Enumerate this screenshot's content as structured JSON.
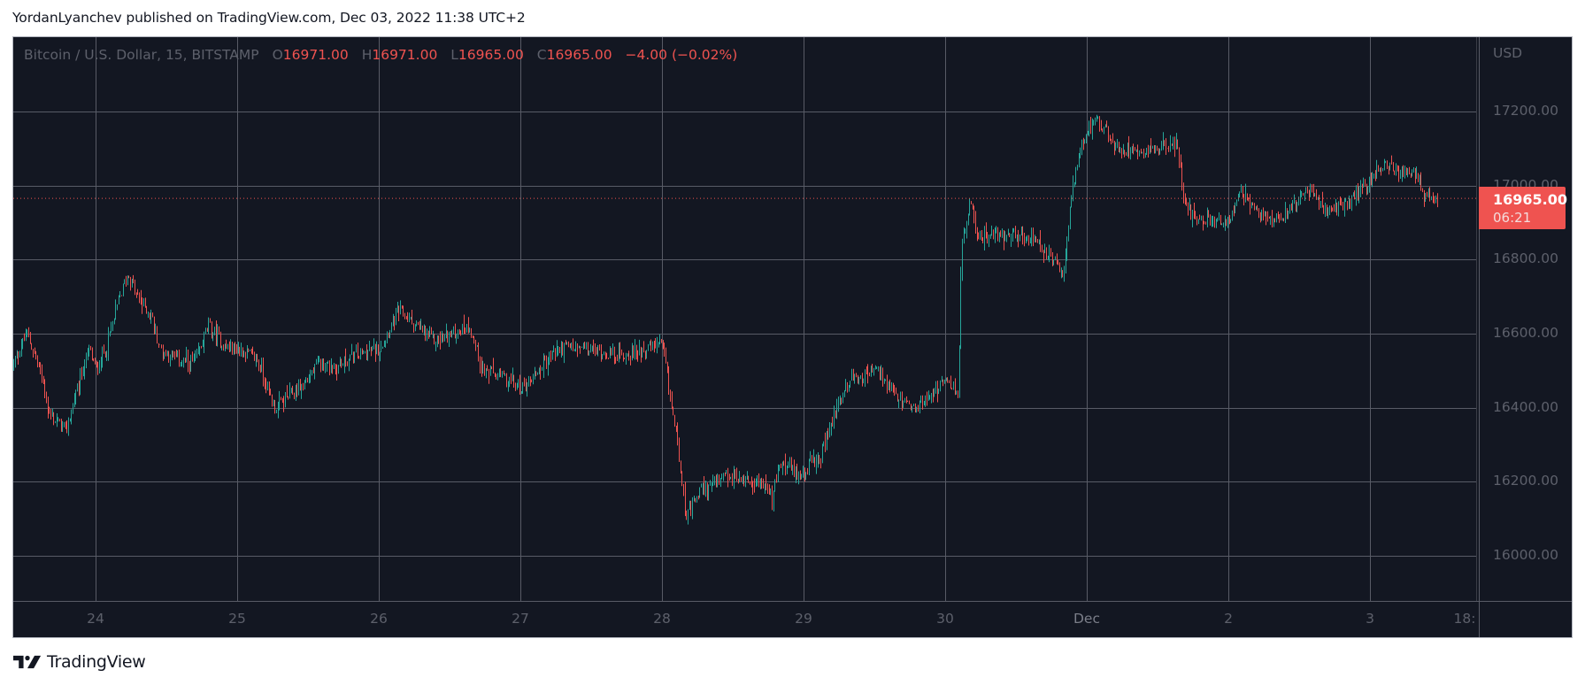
{
  "header": {
    "caption": "YordanLyanchev published on TradingView.com, Dec 03, 2022 11:38 UTC+2"
  },
  "legend": {
    "symbol": "Bitcoin / U.S. Dollar, 15, BITSTAMP",
    "open_label": "O",
    "open": "16971.00",
    "high_label": "H",
    "high": "16971.00",
    "low_label": "L",
    "low": "16965.00",
    "close_label": "C",
    "close": "16965.00",
    "change": "−4.00 (−0.02%)"
  },
  "price_axis": {
    "currency": "USD",
    "ticks": [
      "17200.00",
      "17000.00",
      "16800.00",
      "16600.00",
      "16400.00",
      "16200.00",
      "16000.00"
    ],
    "last_price": "16965.00",
    "countdown": "06:21"
  },
  "time_axis": {
    "ticks": [
      "24",
      "25",
      "26",
      "27",
      "28",
      "29",
      "30",
      "Dec",
      "2",
      "3",
      "18:"
    ]
  },
  "footer": {
    "brand": "TradingView"
  },
  "colors": {
    "background": "#131722",
    "grid": "#585b66",
    "up": "#26a69a",
    "down": "#ef5350",
    "axis_text": "#5d606b",
    "last_price": "#ef5350"
  },
  "chart_data": {
    "type": "candlestick",
    "title": "Bitcoin / U.S. Dollar, 15, BITSTAMP",
    "interval": "15m",
    "xlabel": "",
    "ylabel": "USD",
    "ylim": [
      15890,
      17330
    ],
    "grid": true,
    "y_ticks": [
      16000,
      16200,
      16400,
      16600,
      16800,
      17000,
      17200
    ],
    "x_ticks": [
      "24",
      "25",
      "26",
      "27",
      "28",
      "29",
      "30",
      "Dec",
      "2",
      "3",
      "18:"
    ],
    "last_price": 16965.0,
    "ohlc_last": {
      "open": 16971.0,
      "high": 16971.0,
      "low": 16965.0,
      "close": 16965.0,
      "change": -4.0,
      "change_pct": -0.02
    },
    "approx_path": {
      "description": "Approximate close-price path (day-position, price). Day 0 = Nov 24 00:00; 1 unit = 1 day.",
      "points": [
        [
          -0.58,
          16520
        ],
        [
          -0.49,
          16600
        ],
        [
          -0.39,
          16500
        ],
        [
          -0.33,
          16380
        ],
        [
          -0.21,
          16340
        ],
        [
          -0.11,
          16480
        ],
        [
          -0.05,
          16560
        ],
        [
          0.0,
          16500
        ],
        [
          0.07,
          16560
        ],
        [
          0.17,
          16700
        ],
        [
          0.23,
          16760
        ],
        [
          0.29,
          16700
        ],
        [
          0.39,
          16650
        ],
        [
          0.45,
          16560
        ],
        [
          0.57,
          16530
        ],
        [
          0.7,
          16520
        ],
        [
          0.79,
          16620
        ],
        [
          0.92,
          16560
        ],
        [
          1.0,
          16560
        ],
        [
          1.14,
          16530
        ],
        [
          1.26,
          16400
        ],
        [
          1.39,
          16440
        ],
        [
          1.48,
          16470
        ],
        [
          1.58,
          16520
        ],
        [
          1.7,
          16510
        ],
        [
          1.83,
          16540
        ],
        [
          2.0,
          16560
        ],
        [
          2.14,
          16660
        ],
        [
          2.26,
          16620
        ],
        [
          2.39,
          16580
        ],
        [
          2.51,
          16600
        ],
        [
          2.64,
          16620
        ],
        [
          2.73,
          16500
        ],
        [
          2.89,
          16480
        ],
        [
          3.01,
          16450
        ],
        [
          3.14,
          16510
        ],
        [
          3.26,
          16560
        ],
        [
          3.45,
          16560
        ],
        [
          3.7,
          16540
        ],
        [
          4.0,
          16570
        ],
        [
          4.05,
          16440
        ],
        [
          4.11,
          16300
        ],
        [
          4.17,
          16100
        ],
        [
          4.27,
          16180
        ],
        [
          4.46,
          16210
        ],
        [
          4.71,
          16200
        ],
        [
          4.77,
          16150
        ],
        [
          4.83,
          16250
        ],
        [
          4.96,
          16220
        ],
        [
          5.11,
          16260
        ],
        [
          5.24,
          16410
        ],
        [
          5.33,
          16480
        ],
        [
          5.52,
          16500
        ],
        [
          5.64,
          16430
        ],
        [
          5.77,
          16390
        ],
        [
          5.89,
          16440
        ],
        [
          6.02,
          16470
        ],
        [
          6.09,
          16440
        ],
        [
          6.11,
          16820
        ],
        [
          6.17,
          16950
        ],
        [
          6.24,
          16860
        ],
        [
          6.46,
          16870
        ],
        [
          6.64,
          16850
        ],
        [
          6.77,
          16790
        ],
        [
          6.83,
          16760
        ],
        [
          6.89,
          16970
        ],
        [
          6.96,
          17100
        ],
        [
          7.04,
          17180
        ],
        [
          7.11,
          17160
        ],
        [
          7.21,
          17100
        ],
        [
          7.46,
          17100
        ],
        [
          7.64,
          17110
        ],
        [
          7.67,
          16990
        ],
        [
          7.74,
          16920
        ],
        [
          7.89,
          16900
        ],
        [
          8.02,
          16910
        ],
        [
          8.08,
          16980
        ],
        [
          8.21,
          16920
        ],
        [
          8.39,
          16920
        ],
        [
          8.58,
          16990
        ],
        [
          8.67,
          16930
        ],
        [
          8.8,
          16940
        ],
        [
          8.99,
          17010
        ],
        [
          9.08,
          17060
        ],
        [
          9.21,
          17030
        ],
        [
          9.33,
          17030
        ],
        [
          9.36,
          16970
        ],
        [
          9.48,
          16965
        ]
      ]
    }
  }
}
